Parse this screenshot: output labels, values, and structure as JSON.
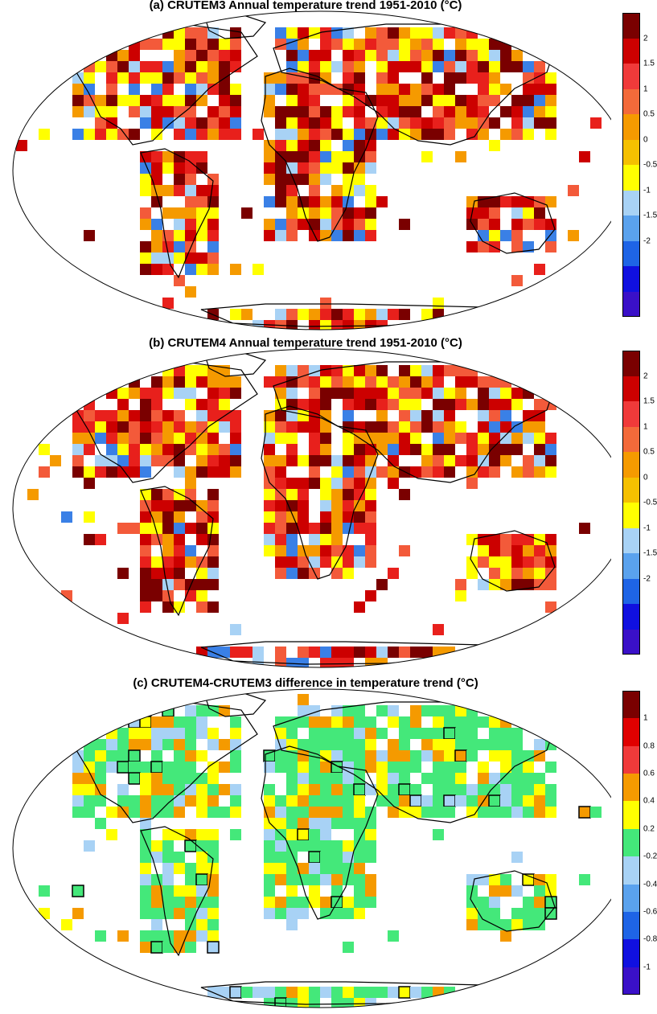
{
  "panels": [
    {
      "id": "a",
      "title": "(a) CRUTEM3 Annual temperature trend 1951-2010 (°C)",
      "colorbar_labels": [
        "2",
        "1.5",
        "1",
        "0.5",
        "0",
        "-0.5",
        "-1",
        "-1.5",
        "-2"
      ],
      "colorbar_colors": [
        "#7a0000",
        "#cc0000",
        "#f03a3a",
        "#f36a3a",
        "#f59a00",
        "#f5c000",
        "#ffff00",
        "#a8d2f5",
        "#5aa2ee",
        "#1e64e6",
        "#1010e0",
        "#3a10c8"
      ]
    },
    {
      "id": "b",
      "title": "(b) CRUTEM4 Annual temperature trend 1951-2010 (°C)",
      "colorbar_labels": [
        "2",
        "1.5",
        "1",
        "0.5",
        "0",
        "-0.5",
        "-1",
        "-1.5",
        "-2"
      ],
      "colorbar_colors": [
        "#7a0000",
        "#cc0000",
        "#f03a3a",
        "#f36a3a",
        "#f59a00",
        "#f5c000",
        "#ffff00",
        "#a8d2f5",
        "#5aa2ee",
        "#1e64e6",
        "#1010e0",
        "#3a10c8"
      ]
    },
    {
      "id": "c",
      "title": "(c) CRUTEM4-CRUTEM3  difference in temperature trend (°C)",
      "colorbar_labels": [
        "1",
        "0.8",
        "0.6",
        "0.4",
        "0.2",
        "-0.2",
        "-0.4",
        "-0.6",
        "-0.8",
        "-1"
      ],
      "colorbar_colors": [
        "#7a0000",
        "#e00000",
        "#f03a3a",
        "#f59a00",
        "#ffff00",
        "#44e87a",
        "#a8d2f5",
        "#5aa2ee",
        "#1e64e6",
        "#1010e0",
        "#3a10c8"
      ]
    }
  ],
  "palette": {
    "warm_dark": "#7a0000",
    "red": "#e8201c",
    "light_red": "#f35a3a",
    "orange": "#f59a00",
    "yellow": "#ffff00",
    "light_blue": "#a8d2f5",
    "blue": "#3a80e6",
    "green": "#44e87a"
  }
}
